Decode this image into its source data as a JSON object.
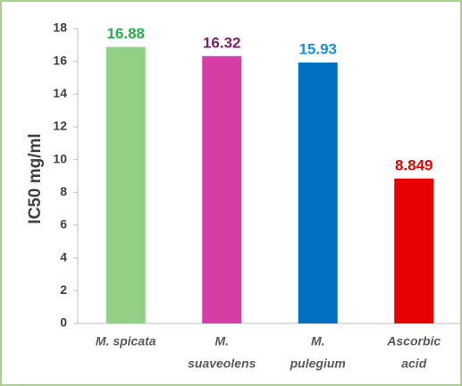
{
  "chart_data": {
    "type": "bar",
    "y_label": "IC50 mg/ml",
    "categories": [
      [
        "M. spicata"
      ],
      [
        "M.",
        "suaveolens"
      ],
      [
        "M.",
        "pulegium"
      ],
      [
        "Ascorbic",
        "acid"
      ]
    ],
    "values": [
      16.88,
      16.32,
      15.93,
      8.849
    ],
    "colors": [
      "#92d185",
      "#d63ea6",
      "#0070c0",
      "#e60000"
    ],
    "value_label_colors": [
      "#22b14c",
      "#7a1f6c",
      "#1a8fe3",
      "#e60000"
    ],
    "ylim": [
      0,
      18
    ],
    "yticks": [
      0,
      2,
      4,
      6,
      8,
      10,
      12,
      14,
      16,
      18
    ],
    "grid": false
  }
}
